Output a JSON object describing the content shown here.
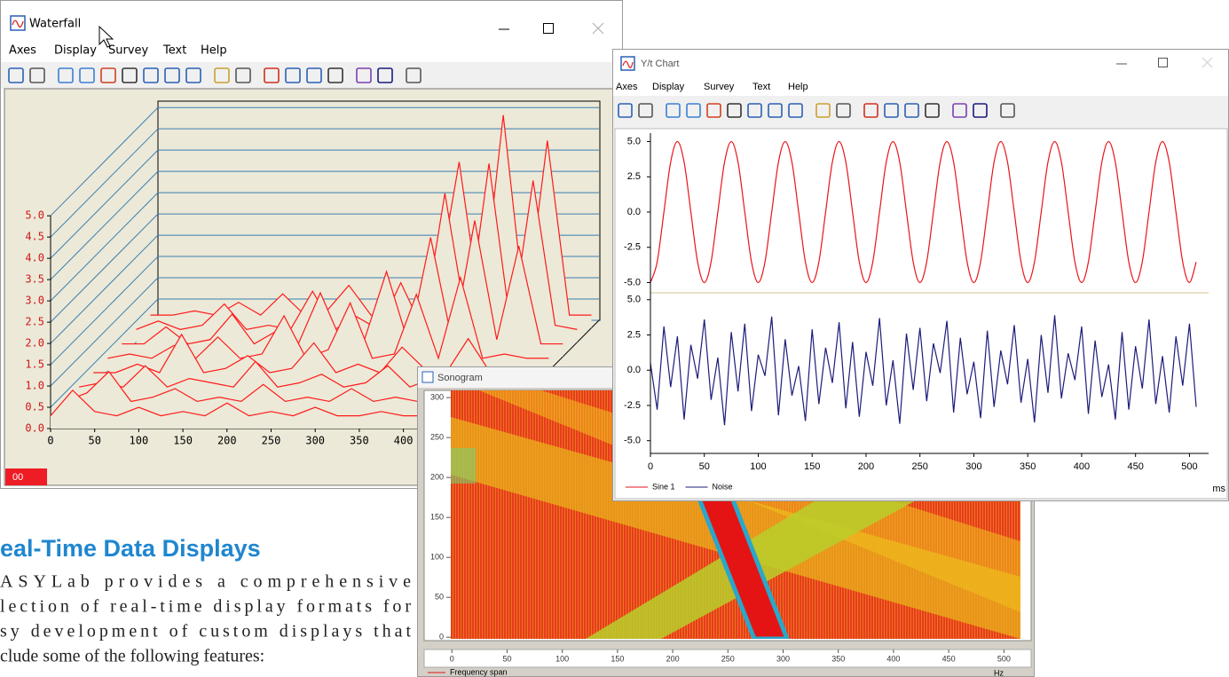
{
  "waterfall": {
    "title": "Waterfall",
    "menu": [
      "Axes",
      "Display",
      "Survey",
      "Text",
      "Help"
    ],
    "indicator": "00",
    "chart_data": {
      "type": "waterfall",
      "color": "#ff1a1a",
      "xlim": [
        0,
        500
      ],
      "ylim": [
        0,
        5.15
      ],
      "xticks": [
        0,
        50,
        100,
        150,
        200,
        250,
        300,
        350,
        400,
        450
      ],
      "yticks": [
        {
          "value": 0,
          "label": "0.0"
        },
        0.5,
        {
          "value": 1,
          "label": "1.0"
        },
        1.5,
        {
          "value": 2,
          "label": "2.0"
        },
        2.5,
        {
          "value": 3,
          "label": "3.0"
        },
        3.5,
        {
          "value": 4,
          "label": "4.0"
        },
        4.5,
        {
          "value": 5,
          "label": "5.0"
        }
      ],
      "x": [
        0,
        25,
        50,
        75,
        100,
        125,
        150,
        175,
        200,
        225,
        250,
        275,
        300,
        325,
        350,
        375,
        400,
        425,
        450,
        475,
        500
      ],
      "series": [
        {
          "values": [
            0.3,
            0.9,
            0.4,
            0.3,
            0.5,
            0.3,
            0.4,
            0.3,
            0.6,
            0.3,
            0.4,
            0.3,
            0.5,
            0.3,
            0.3,
            0.4,
            0.3,
            0.3,
            0.4,
            0.3,
            0.3
          ]
        },
        {
          "values": [
            0.3,
            0.5,
            1.0,
            0.3,
            0.4,
            0.6,
            0.3,
            0.4,
            0.3,
            0.7,
            0.3,
            0.4,
            0.3,
            0.6,
            0.3,
            0.4,
            0.3,
            0.5,
            0.3,
            0.3,
            0.3
          ]
        },
        {
          "values": [
            0.3,
            0.4,
            0.3,
            0.8,
            0.3,
            0.5,
            0.4,
            0.3,
            0.9,
            0.3,
            0.4,
            0.6,
            0.3,
            0.4,
            0.8,
            0.3,
            0.5,
            0.3,
            0.4,
            0.3,
            0.3
          ]
        },
        {
          "values": [
            0.3,
            0.3,
            0.5,
            0.3,
            1.2,
            0.3,
            0.4,
            0.7,
            0.3,
            0.4,
            1.0,
            0.3,
            0.5,
            0.3,
            0.9,
            0.4,
            0.3,
            1.1,
            0.3,
            0.3,
            0.3
          ]
        },
        {
          "values": [
            0.3,
            0.4,
            0.3,
            0.6,
            0.3,
            0.8,
            0.3,
            0.4,
            1.3,
            0.3,
            0.5,
            1.6,
            0.3,
            0.4,
            1.8,
            0.3,
            2.2,
            0.3,
            0.4,
            0.3,
            0.3
          ]
        },
        {
          "values": [
            0.3,
            0.3,
            0.7,
            0.3,
            0.4,
            1.0,
            0.3,
            0.6,
            0.3,
            1.5,
            0.3,
            0.4,
            2.0,
            0.3,
            2.8,
            0.3,
            3.2,
            0.4,
            2.6,
            0.3,
            0.3
          ]
        },
        {
          "values": [
            0.3,
            0.5,
            0.3,
            0.4,
            0.9,
            0.3,
            0.4,
            0.3,
            1.2,
            0.3,
            0.6,
            0.3,
            1.4,
            0.3,
            3.5,
            0.4,
            4.2,
            0.3,
            3.8,
            0.4,
            0.3
          ]
        },
        {
          "values": [
            0.3,
            0.3,
            0.4,
            0.3,
            0.6,
            0.3,
            0.8,
            0.3,
            0.4,
            1.0,
            0.3,
            0.4,
            0.3,
            0.9,
            3.9,
            0.3,
            5.0,
            0.3,
            4.4,
            0.3,
            0.3
          ]
        }
      ]
    }
  },
  "sonogram": {
    "title": "Sonogram",
    "chart_data": {
      "type": "heatmap",
      "xlim": [
        -1,
        515
      ],
      "ylim": [
        -2,
        309
      ],
      "xticks": [
        0,
        50,
        100,
        150,
        200,
        250,
        300,
        350,
        400,
        450,
        500
      ],
      "yticks": [
        0,
        50,
        100,
        150,
        200,
        250,
        300
      ],
      "legend": "Frequency span",
      "unit": "Hz"
    }
  },
  "yt": {
    "title": "Y/t Chart",
    "menu": [
      "Axes",
      "Display",
      "Survey",
      "Text",
      "Help"
    ],
    "chart_data": {
      "type": "line",
      "x_unit": "ms",
      "xlim": [
        0,
        512
      ],
      "xticks": [
        0,
        50,
        100,
        150,
        200,
        250,
        300,
        350,
        400,
        450,
        500
      ],
      "x": [
        0,
        6.25,
        12.5,
        18.75,
        25,
        31.25,
        37.5,
        43.75,
        50,
        56.25,
        62.5,
        68.75,
        75,
        81.25,
        87.5,
        93.75,
        100,
        106.25,
        112.5,
        118.75,
        125,
        131.25,
        137.5,
        143.75,
        150,
        156.25,
        162.5,
        168.75,
        175,
        181.25,
        187.5,
        193.75,
        200,
        206.25,
        212.5,
        218.75,
        225,
        231.25,
        237.5,
        243.75,
        250,
        256.25,
        262.5,
        268.75,
        275,
        281.25,
        287.5,
        293.75,
        300,
        306.25,
        312.5,
        318.75,
        325,
        331.25,
        337.5,
        343.75,
        350,
        356.25,
        362.5,
        368.75,
        375,
        381.25,
        387.5,
        393.75,
        400,
        406.25,
        412.5,
        418.75,
        425,
        431.25,
        437.5,
        443.75,
        450,
        456.25,
        462.5,
        468.75,
        475,
        481.25,
        487.5,
        493.75,
        500,
        506.25
      ],
      "series": [
        {
          "name": "Sine 1",
          "color": "#e8141c",
          "smooth": true,
          "ylim": [
            -5.6,
            5.6
          ],
          "yticks": [
            {
              "value": 5,
              "label": "5.0"
            },
            2.5,
            {
              "value": 0,
              "label": "0.0"
            },
            -2.5,
            {
              "value": -5,
              "label": "-5.0"
            }
          ],
          "values": [
            -5,
            -3.54,
            0,
            3.54,
            5,
            3.54,
            0,
            -3.54,
            -5,
            -3.54,
            0,
            3.54,
            5,
            3.54,
            0,
            -3.54,
            -5,
            -3.54,
            0,
            3.54,
            5,
            3.54,
            0,
            -3.54,
            -5,
            -3.54,
            0,
            3.54,
            5,
            3.54,
            0,
            -3.54,
            -5,
            -3.54,
            0,
            3.54,
            5,
            3.54,
            0,
            -3.54,
            -5,
            -3.54,
            0,
            3.54,
            5,
            3.54,
            0,
            -3.54,
            -5,
            -3.54,
            0,
            3.54,
            5,
            3.54,
            0,
            -3.54,
            -5,
            -3.54,
            0,
            3.54,
            5,
            3.54,
            0,
            -3.54,
            -5,
            -3.54,
            0,
            3.54,
            5,
            3.54,
            0,
            -3.54,
            -5,
            -3.54,
            0,
            3.54,
            5,
            3.54,
            0,
            -3.54,
            -5,
            -3.54
          ]
        },
        {
          "name": "Noise",
          "color": "#1c1c7a",
          "smooth": false,
          "ylim": [
            -5.9,
            5.3
          ],
          "yticks": [
            {
              "value": 5,
              "label": "5.0"
            },
            2.5,
            {
              "value": 0,
              "label": "0.0"
            },
            -2.5,
            {
              "value": -5,
              "label": "-5.0"
            }
          ],
          "values": [
            0.5,
            -2.8,
            3.1,
            -1.2,
            2.4,
            -3.5,
            1.8,
            -0.6,
            3.6,
            -2.1,
            0.9,
            -3.9,
            2.7,
            -1.5,
            3.3,
            -2.9,
            1.1,
            -0.4,
            3.8,
            -3.2,
            2.2,
            -1.8,
            0.3,
            -3.6,
            2.9,
            -2.4,
            1.6,
            -0.9,
            3.4,
            -2.7,
            2.0,
            -3.3,
            1.3,
            -1.1,
            3.7,
            -2.5,
            0.7,
            -3.8,
            2.6,
            -1.4,
            3.0,
            -2.2,
            1.9,
            -0.2,
            3.5,
            -3.0,
            2.3,
            -1.7,
            0.6,
            -3.4,
            2.8,
            -2.6,
            1.4,
            -1.0,
            3.2,
            -2.3,
            0.8,
            -3.7,
            2.5,
            -1.6,
            3.9,
            -2.0,
            1.2,
            -0.7,
            3.1,
            -3.1,
            2.1,
            -1.9,
            0.4,
            -3.5,
            2.7,
            -2.8,
            1.7,
            -1.3,
            3.6,
            -2.4,
            1.0,
            -3.0,
            2.4,
            -1.1,
            3.3,
            -2.6
          ]
        }
      ]
    }
  },
  "article": {
    "heading": "eal-Time Data Displays",
    "lines": [
      "ASYLab provides a comprehensive",
      "lection of real-time display formats for",
      "sy development of custom displays that",
      "clude some of the following features:"
    ]
  }
}
